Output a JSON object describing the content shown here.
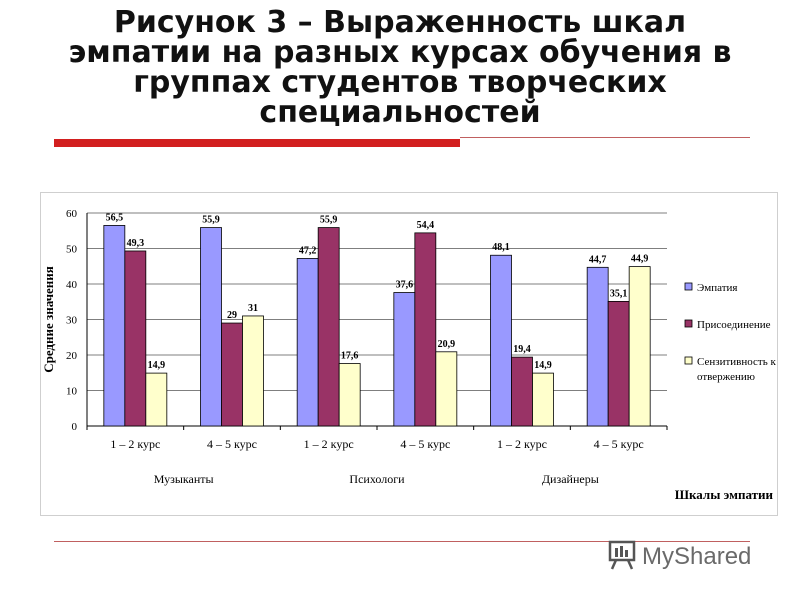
{
  "slide": {
    "title": "Рисунок 3 – Выраженность шкал эмпатии на разных курсах обучения в группах студентов творческих специальностей"
  },
  "logo": {
    "text": "MyShared"
  },
  "chart_data": {
    "type": "bar",
    "ylabel": "Средние значения",
    "xlabel": "Шкалы эмпатии",
    "ylim": [
      0,
      60
    ],
    "yticks": [
      0,
      10,
      20,
      30,
      40,
      50,
      60
    ],
    "categories": [
      "1 – 2 курс",
      "4 – 5 курс",
      "1 – 2 курс",
      "4 – 5 курс",
      "1 – 2 курс",
      "4 – 5 курс"
    ],
    "groups": [
      "Музыканты",
      "Психологи",
      "Дизайнеры"
    ],
    "series": [
      {
        "name": "Эмпатия",
        "color": "#9999ff",
        "values": [
          56.5,
          55.9,
          47.2,
          37.6,
          48.1,
          44.7
        ],
        "labels": [
          "56,5",
          "55,9",
          "47,2",
          "37,6",
          "48,1",
          "44,7"
        ]
      },
      {
        "name": "Присоединение",
        "color": "#993366",
        "values": [
          49.3,
          29,
          55.9,
          54.4,
          19.4,
          35.1
        ],
        "labels": [
          "49,3",
          "29",
          "55,9",
          "54,4",
          "19,4",
          "35,1"
        ]
      },
      {
        "name": "Сензитивность к отвержению",
        "color": "#ffffcc",
        "values": [
          14.9,
          31,
          17.6,
          20.9,
          14.9,
          44.9
        ],
        "labels": [
          "14,9",
          "31",
          "17,6",
          "20,9",
          "14,9",
          "44,9"
        ]
      }
    ],
    "legend_position": "right",
    "grid": true
  }
}
